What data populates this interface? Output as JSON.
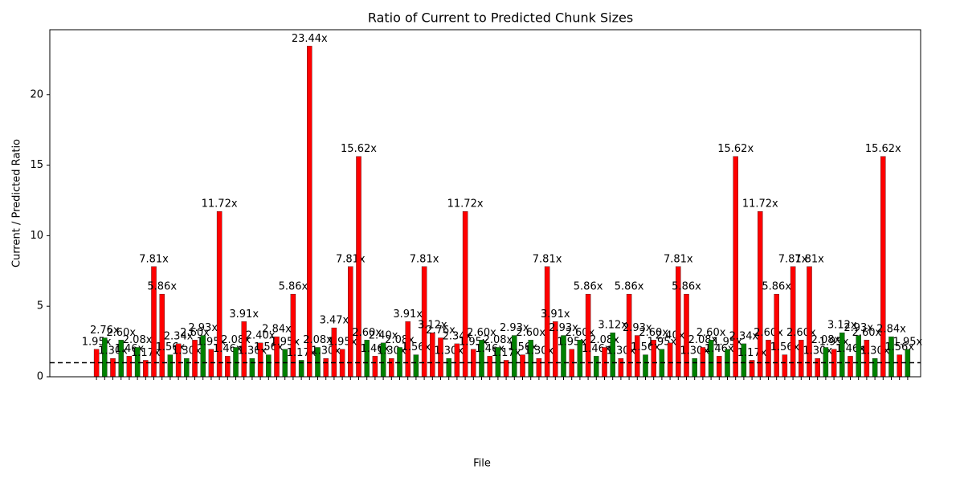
{
  "chart_data": {
    "type": "bar",
    "title": "Ratio of Current to Predicted Chunk Sizes",
    "x_label": "File",
    "y_label": "Current / Predicted Ratio",
    "categories": [
      null,
      null,
      null,
      null,
      null,
      null,
      null,
      null,
      null,
      null,
      null,
      null,
      null,
      null,
      null,
      null,
      null,
      null,
      null,
      null,
      null,
      null,
      null,
      null,
      null,
      null,
      null,
      null,
      null,
      null,
      null,
      null,
      null,
      null,
      null,
      null,
      null,
      null,
      null,
      null,
      null,
      null,
      null,
      null,
      null,
      null,
      null,
      null,
      null,
      null,
      null,
      null,
      null,
      null,
      null,
      null,
      null,
      null,
      null,
      null,
      null,
      null,
      null,
      null,
      null,
      null,
      null,
      null,
      null,
      null,
      null,
      null,
      null,
      null,
      null,
      null,
      null,
      null,
      null,
      null,
      null,
      null,
      null,
      null,
      null,
      null,
      null,
      null,
      null,
      null,
      null,
      null,
      null,
      null,
      null,
      null,
      null,
      null,
      null,
      null
    ],
    "values": [
      1.95,
      2.76,
      1.3,
      2.6,
      1.46,
      2.08,
      1.17,
      7.81,
      5.86,
      1.56,
      2.34,
      1.3,
      2.6,
      2.93,
      1.95,
      11.72,
      1.46,
      2.08,
      3.91,
      1.3,
      2.4,
      1.56,
      2.84,
      1.95,
      5.86,
      1.17,
      23.44,
      2.08,
      1.3,
      3.47,
      1.95,
      7.81,
      15.62,
      2.6,
      1.46,
      2.4,
      1.3,
      2.08,
      3.91,
      1.56,
      7.81,
      3.12,
      2.76,
      1.3,
      2.34,
      11.72,
      1.95,
      2.6,
      1.46,
      2.08,
      1.17,
      2.93,
      1.56,
      2.6,
      1.3,
      7.81,
      3.91,
      2.93,
      1.95,
      2.6,
      5.86,
      1.46,
      2.08,
      3.12,
      1.3,
      5.86,
      2.93,
      1.56,
      2.6,
      1.95,
      2.4,
      7.81,
      5.86,
      1.3,
      2.08,
      2.6,
      1.46,
      1.95,
      15.62,
      2.34,
      1.17,
      11.72,
      2.6,
      5.86,
      1.56,
      7.81,
      2.6,
      7.81,
      1.3,
      2.08,
      1.95,
      3.12,
      1.46,
      2.93,
      2.6,
      1.3,
      15.62,
      2.84,
      1.56,
      1.95
    ],
    "value_labels": [
      "1.95x",
      "2.76x",
      "1.30x",
      "2.60x",
      "1.46x",
      "2.08x",
      "1.17x",
      "7.81x",
      "5.86x",
      "1.56x",
      "2.34x",
      "1.30x",
      "2.60x",
      "2.93x",
      "1.95x",
      "11.72x",
      "1.46x",
      "2.08x",
      "3.91x",
      "1.30x",
      "2.40x",
      "1.56x",
      "2.84x",
      "1.95x",
      "5.86x",
      "1.17x",
      "23.44x",
      "2.08x",
      "1.30x",
      "3.47x",
      "1.95x",
      "7.81x",
      "15.62x",
      "2.60x",
      "1.46x",
      "2.40x",
      "1.30x",
      "2.08x",
      "3.91x",
      "1.56x",
      "7.81x",
      "3.12x",
      "2.76x",
      "1.30x",
      "2.34x",
      "11.72x",
      "1.95x",
      "2.60x",
      "1.46x",
      "2.08x",
      "1.17x",
      "2.93x",
      "1.56x",
      "2.60x",
      "1.30x",
      "7.81x",
      "3.91x",
      "2.93x",
      "1.95x",
      "2.60x",
      "5.86x",
      "1.46x",
      "2.08x",
      "3.12x",
      "1.30x",
      "5.86x",
      "2.93x",
      "1.56x",
      "2.60x",
      "1.95x",
      "2.40x",
      "7.81x",
      "5.86x",
      "1.30x",
      "2.08x",
      "2.60x",
      "1.46x",
      "1.95x",
      "15.62x",
      "2.34x",
      "1.17x",
      "11.72x",
      "2.60x",
      "5.86x",
      "1.56x",
      "7.81x",
      "2.60x",
      "7.81x",
      "1.30x",
      "2.08x",
      "1.95x",
      "3.12x",
      "1.46x",
      "2.93x",
      "2.60x",
      "1.30x",
      "15.62x",
      "2.84x",
      "1.56x",
      "1.95x"
    ],
    "colors": [
      "#ff0000",
      "#008000",
      "#ff0000",
      "#008000",
      "#ff0000",
      "#008000",
      "#ff0000",
      "#ff0000",
      "#ff0000",
      "#008000",
      "#ff0000",
      "#008000",
      "#ff0000",
      "#008000",
      "#ff0000",
      "#ff0000",
      "#ff0000",
      "#008000",
      "#ff0000",
      "#008000",
      "#ff0000",
      "#008000",
      "#ff0000",
      "#008000",
      "#ff0000",
      "#008000",
      "#ff0000",
      "#008000",
      "#ff0000",
      "#ff0000",
      "#ff0000",
      "#ff0000",
      "#ff0000",
      "#008000",
      "#ff0000",
      "#008000",
      "#ff0000",
      "#008000",
      "#ff0000",
      "#008000",
      "#ff0000",
      "#ff0000",
      "#ff0000",
      "#008000",
      "#ff0000",
      "#ff0000",
      "#ff0000",
      "#008000",
      "#ff0000",
      "#008000",
      "#ff0000",
      "#008000",
      "#ff0000",
      "#008000",
      "#ff0000",
      "#ff0000",
      "#ff0000",
      "#008000",
      "#ff0000",
      "#008000",
      "#ff0000",
      "#008000",
      "#ff0000",
      "#008000",
      "#ff0000",
      "#ff0000",
      "#ff0000",
      "#008000",
      "#ff0000",
      "#008000",
      "#ff0000",
      "#ff0000",
      "#ff0000",
      "#008000",
      "#ff0000",
      "#008000",
      "#ff0000",
      "#008000",
      "#ff0000",
      "#008000",
      "#ff0000",
      "#ff0000",
      "#ff0000",
      "#ff0000",
      "#ff0000",
      "#ff0000",
      "#ff0000",
      "#ff0000",
      "#ff0000",
      "#008000",
      "#ff0000",
      "#008000",
      "#ff0000",
      "#008000",
      "#ff0000",
      "#008000",
      "#ff0000",
      "#008000",
      "#ff0000",
      "#008000"
    ],
    "ylim": [
      0,
      24.6
    ],
    "yticks": [
      0,
      5,
      10,
      15,
      20
    ],
    "reference_line": 1,
    "grid": false
  }
}
